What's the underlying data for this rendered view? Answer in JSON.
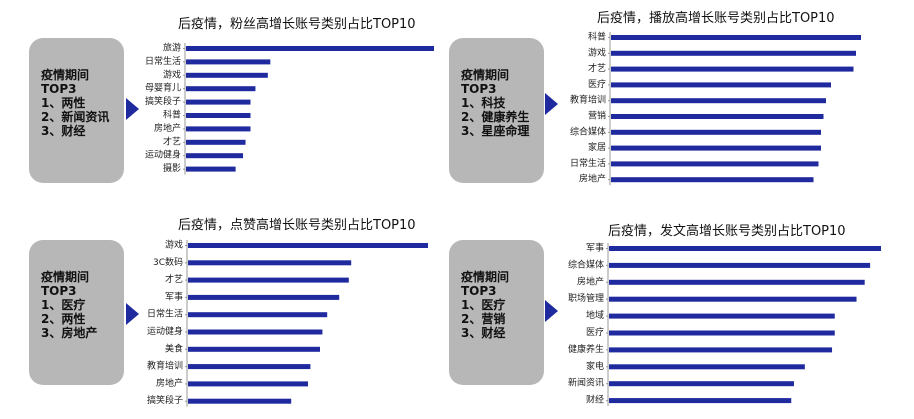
{
  "colors": {
    "bar": "#1f2a9e",
    "box": "#b7b7b7",
    "axis": "#999999"
  },
  "panels": [
    {
      "box": {
        "heading": "疫情期间",
        "sub": "TOP3",
        "items": [
          "1、两性",
          "2、新闻资讯",
          "3、财经"
        ]
      },
      "chart_data": {
        "type": "bar",
        "orientation": "horizontal",
        "title": "后疫情，粉丝高增长账号类别占比TOP10",
        "categories": [
          "旅游",
          "日常生活",
          "游戏",
          "母婴育儿",
          "搞笑段子",
          "科普",
          "房地产",
          "才艺",
          "运动健身",
          "摄影"
        ],
        "values": [
          100,
          34,
          33,
          28,
          26,
          26,
          26,
          24,
          23,
          20
        ],
        "xlim": [
          0,
          100
        ],
        "xlabel": "",
        "ylabel": "",
        "grid": false
      }
    },
    {
      "box": {
        "heading": "疫情期间",
        "sub": "TOP3",
        "items": [
          "1、科技",
          "2、健康养生",
          "3、星座命理"
        ]
      },
      "chart_data": {
        "type": "bar",
        "orientation": "horizontal",
        "title": "后疫情，播放高增长账号类别占比TOP10",
        "categories": [
          "科普",
          "游戏",
          "才艺",
          "医疗",
          "教育培训",
          "营销",
          "综合媒体",
          "家居",
          "日常生活",
          "房地产"
        ],
        "values": [
          100,
          98,
          97,
          88,
          86,
          85,
          84,
          84,
          83,
          81
        ],
        "xlim": [
          0,
          100
        ],
        "xlabel": "",
        "ylabel": "",
        "grid": false
      }
    },
    {
      "box": {
        "heading": "疫情期间",
        "sub": "TOP3",
        "items": [
          "1、医疗",
          "2、两性",
          "3、房地产"
        ]
      },
      "chart_data": {
        "type": "bar",
        "orientation": "horizontal",
        "title": "后疫情，点赞高增长账号类别占比TOP10",
        "categories": [
          "游戏",
          "3C数码",
          "才艺",
          "军事",
          "日常生活",
          "运动健身",
          "美食",
          "教育培训",
          "房地产",
          "搞笑段子"
        ],
        "values": [
          100,
          68,
          67,
          63,
          58,
          56,
          55,
          51,
          50,
          43
        ],
        "xlim": [
          0,
          100
        ],
        "xlabel": "",
        "ylabel": "",
        "grid": false
      }
    },
    {
      "box": {
        "heading": "疫情期间",
        "sub": "TOP3",
        "items": [
          "1、医疗",
          "2、营销",
          "3、财经"
        ]
      },
      "chart_data": {
        "type": "bar",
        "orientation": "horizontal",
        "title": "后疫情，发文高增长账号类别占比TOP10",
        "categories": [
          "军事",
          "综合媒体",
          "房地产",
          "职场管理",
          "地域",
          "医疗",
          "健康养生",
          "家电",
          "新闻资讯",
          "财经"
        ],
        "values": [
          100,
          96,
          94,
          91,
          83,
          83,
          82,
          72,
          68,
          67
        ],
        "xlim": [
          0,
          100
        ],
        "xlabel": "",
        "ylabel": "",
        "grid": false
      }
    }
  ]
}
